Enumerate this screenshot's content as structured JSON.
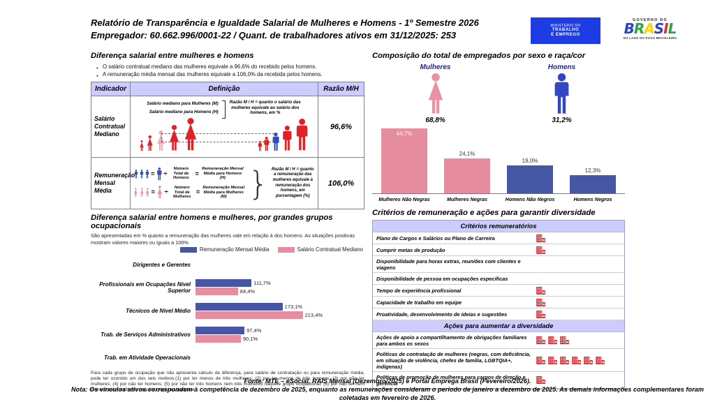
{
  "header": {
    "title": "Relatório de Transparência e Igualdade Salarial de Mulheres e Homens - 1º Semestre 2026",
    "subtitle": "Empregador: 60.662.996/0001-22 / Quant. de trabalhadores ativos em 31/12/2025: 253",
    "mte_logo": [
      "MINISTÉRIO DO",
      "TRABALHO",
      "E EMPREGO"
    ],
    "gov_logo": {
      "top": "GOVERNO DO",
      "brand": "BRASIL",
      "bottom": "DO LADO DO POVO BRASILEIRO"
    }
  },
  "salary_diff": {
    "title": "Diferença salarial entre mulheres e homens",
    "bullets": [
      "O salário contratual mediano das mulheres equivale a 96,6% do recebido pelos homens.",
      "A remuneração média mensal das mulheres equivale a 106,0% da recebida pelos homens."
    ],
    "table": {
      "headers": [
        "Indicador",
        "Definição",
        "Razão M/H"
      ],
      "rows": [
        {
          "indicator": "Salário Contratual Mediano",
          "def_lines": [
            "Salário mediano para Mulheres (M)",
            "Salário mediano para Homens (H)"
          ],
          "def_note": "Razão M / H = quanto o salário das mulheres equivale ao salário dos homens, em %",
          "ratio": "96,6%"
        },
        {
          "indicator": "Remuneração Mensal Média",
          "men_eq": {
            "divisor": "Número Total de Homens",
            "result": "Remuneração Mensal Média para Homens (H)"
          },
          "women_eq": {
            "divisor": "Número Total de Mulheres",
            "result": "Remuneração Mensal Média para Mulheres (M)"
          },
          "def_note": "Razão M / H = quanto a remuneração das mulheres equivale à remuneração dos homens, em porcentagem (%)",
          "ratio": "106,0%"
        }
      ]
    }
  },
  "composition": {
    "title": "Composição do total de empregados por sexo e raça/cor",
    "female": {
      "label": "Mulheres",
      "value": "68,8%"
    },
    "male": {
      "label": "Homens",
      "value": "31,2%"
    }
  },
  "occupational": {
    "title": "Diferença salarial entre homens e mulheres, por grandes grupos ocupacionais",
    "subtitle": "São apresentadas em % quanto a remuneração das mulheres vale em relação à dos homens. As situações positivas mostram valores maiores ou iguais a 100%",
    "footnote": "Para cada grupo de ocupação que não apresenta cálculo da diferença, para salário de contratação ou para remuneração média, pode ter ocorrido um dos seis motivos:(1) por ter menos de três mulheres; (2) por ter menos de três homens; (3) por não ter mulheres; (4) por não ter homens; (5) por não ter três homens nem três mulheres naquele grupo ocupacional; (6) por não ter nem homens nem mulheres naquele grupo ocupacional."
  },
  "chart_data": [
    {
      "type": "bar",
      "title": "Composição do total de empregados por sexo e raça/cor",
      "categories": [
        "Mulheres Não Negras",
        "Mulheres Negras",
        "Homens Não Negros",
        "Homens Negros"
      ],
      "values": [
        44.7,
        24.1,
        19.0,
        12.3
      ],
      "labels": [
        "44,7%",
        "24,1%",
        "19,0%",
        "12,3%"
      ],
      "bar_colors": [
        "#e68da0",
        "#e68da0",
        "#4456a4",
        "#4456a4"
      ],
      "ylim": [
        0,
        46
      ],
      "grid": false,
      "legend_position": "none"
    },
    {
      "type": "bar",
      "orientation": "horizontal",
      "title": "Diferença salarial entre homens e mulheres, por grandes grupos ocupacionais",
      "categories": [
        "Dirigentes e Gerentes",
        "Profissionais em Ocupações Nível Superior",
        "Técnicos de Nível Médio",
        "Trab. de Serviços Administrativos",
        "Trab. em Atividade Operacionais"
      ],
      "series": [
        {
          "name": "Remuneração Mensal Média",
          "color": "#4456a4",
          "values": [
            null,
            111.7,
            173.1,
            97.4,
            null
          ],
          "labels": [
            null,
            "111,7%",
            "173,1%",
            "97,4%",
            null
          ]
        },
        {
          "name": "Salário Contratual Mediano",
          "color": "#e68da0",
          "values": [
            null,
            84.4,
            213.4,
            90.1,
            null
          ],
          "labels": [
            null,
            "84,4%",
            "213,4%",
            "90,1%",
            null
          ]
        }
      ],
      "xlim": [
        0,
        230
      ],
      "grid": false,
      "legend_position": "top"
    }
  ],
  "criteria": {
    "title": "Critérios de remuneração e ações para garantir diversidade",
    "sections": [
      {
        "header": "Critérios remuneratórios",
        "rows": [
          {
            "label": "Plano de Cargos e Salários ou Plano de Carreira",
            "icons": 1
          },
          {
            "label": "Cumprir metas de produção",
            "icons": 1
          },
          {
            "label": "Disponibilidade para horas extras, reuniões com clientes e viagens",
            "icons": 0
          },
          {
            "label": "Disponibilidade de pessoa em ocupações específicas",
            "icons": 0
          },
          {
            "label": "Tempo de experiência profissional",
            "icons": 1
          },
          {
            "label": "Capacidade de trabalho em equipe",
            "icons": 1
          },
          {
            "label": "Proatividade, desenvolvimento de ideias e sugestões",
            "icons": 1
          }
        ]
      },
      {
        "header": "Ações para aumentar a diversidade",
        "rows": [
          {
            "label": "Ações de apoio a compartilhamento de obrigações familiares para ambos os sexos",
            "icons": 3
          },
          {
            "label": "Políticas de contratação de mulheres (negras, com deficiência, em situação de violência, chefes de família, LGBTQIA+, indígenas)",
            "icons": 6
          },
          {
            "label": "Políticas de promoção de mulheres para cargos de direção e gerência",
            "icons": 1
          }
        ]
      }
    ]
  },
  "footer": {
    "fonte": "Fonte: MTE – eSocial, RAIS Mensal (Dezembro/2025) e Portal Emprega Brasil (Fevereiro/2026).",
    "nota": "Nota: Os vínculos ativos correspondem à competência de dezembro de 2025, enquanto as remunerações consideram o período de janeiro a dezembro de 2025. As demais informações complementares foram coletadas em fevereiro de 2026."
  },
  "colors": {
    "accent_lavender": "#ccccff",
    "bar_pink": "#e68da0",
    "bar_blue": "#4456a4",
    "figure_red": "#e02128",
    "figure_pink": "#f2a9bc",
    "figure_blue": "#2d46c9",
    "comp_pink": "#ef8fa4",
    "comp_blue": "#3347c4",
    "icon_red": "#e02128",
    "navy_label": "#23238f",
    "mte_blue": "#1d3ce6",
    "brand_letter_colors": [
      "#2743d0",
      "#2aa63f",
      "#ffd400",
      "#2743d0",
      "#e52e2e",
      "#2aa63f"
    ]
  }
}
